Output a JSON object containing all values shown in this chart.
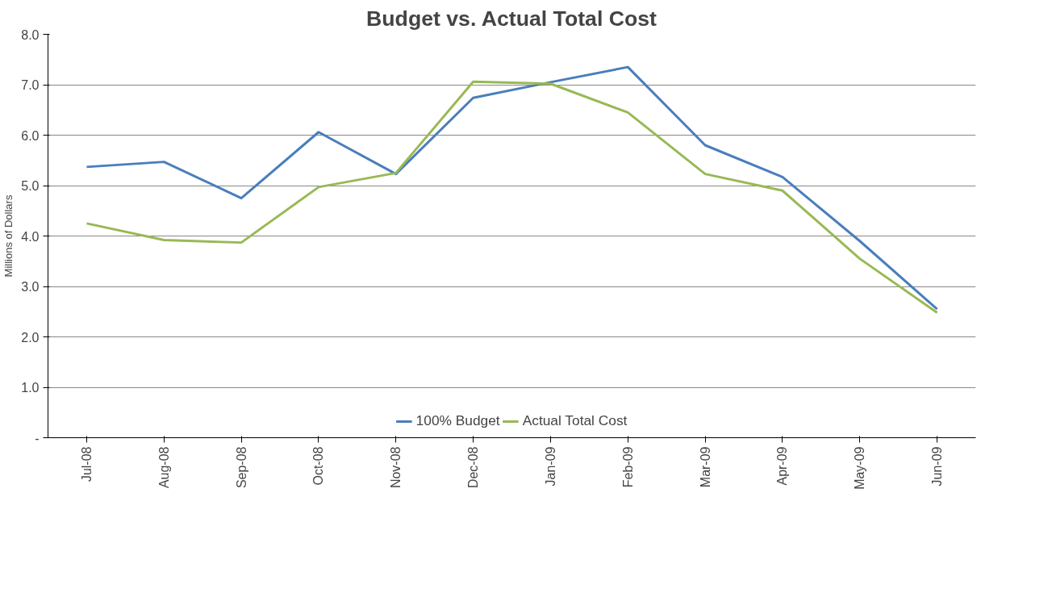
{
  "chart_data": {
    "type": "line",
    "title": "Budget vs. Actual Total Cost",
    "ylabel": "Millions of Dollars",
    "categories": [
      "Jul-08",
      "Aug-08",
      "Sep-08",
      "Oct-08",
      "Nov-08",
      "Dec-08",
      "Jan-09",
      "Feb-09",
      "Mar-09",
      "Apr-09",
      "May-09",
      "Jun-09"
    ],
    "series": [
      {
        "name": "100% Budget",
        "color": "#4a7ebb",
        "values": [
          5.37,
          5.47,
          4.75,
          6.06,
          5.23,
          6.74,
          7.05,
          7.35,
          5.8,
          5.17,
          3.9,
          2.55
        ]
      },
      {
        "name": "Actual Total Cost",
        "color": "#98b954",
        "values": [
          4.25,
          3.92,
          3.87,
          4.97,
          5.25,
          7.06,
          7.02,
          6.45,
          5.23,
          4.9,
          3.55,
          2.48
        ]
      }
    ],
    "ylim": [
      0,
      8
    ],
    "yticks": [
      {
        "value": 0,
        "label": "-"
      },
      {
        "value": 1,
        "label": "1.0"
      },
      {
        "value": 2,
        "label": "2.0"
      },
      {
        "value": 3,
        "label": "3.0"
      },
      {
        "value": 4,
        "label": "4.0"
      },
      {
        "value": 5,
        "label": "5.0"
      },
      {
        "value": 6,
        "label": "6.0"
      },
      {
        "value": 7,
        "label": "7.0"
      },
      {
        "value": 8,
        "label": "8.0"
      }
    ],
    "grid": "y",
    "legend": "bottom",
    "marker": "none",
    "line_style": "solid"
  }
}
